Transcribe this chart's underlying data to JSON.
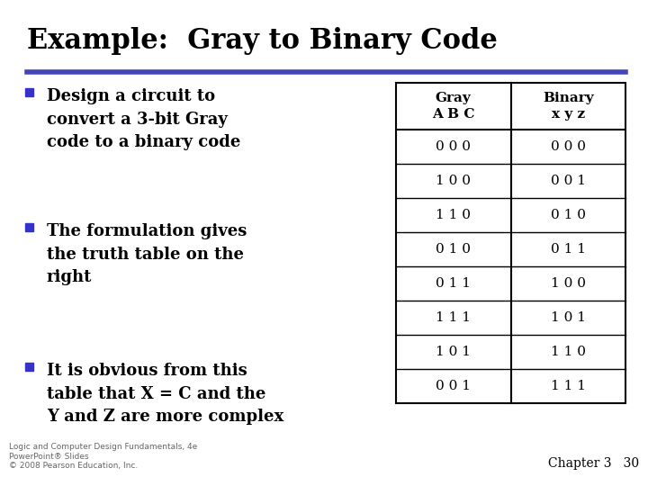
{
  "title": "Example:  Gray to Binary Code",
  "title_color": "#000000",
  "title_fontsize": 22,
  "title_bold": true,
  "separator_color": "#4444bb",
  "bg_color": "#ffffff",
  "bullets": [
    "Design a circuit to\nconvert a 3-bit Gray\ncode to a binary code",
    "The formulation gives\nthe truth table on the\nright",
    "It is obvious from this\ntable that X = C and the\nY and Z are more complex"
  ],
  "bullet_fontsize": 13.0,
  "bullet_color": "#3333cc",
  "bullet_text_color": "#000000",
  "table_header_col1_line1": "Gray",
  "table_header_col1_line2": "A B C",
  "table_header_col2_line1": "Binary",
  "table_header_col2_line2": "x y z",
  "table_data": [
    [
      "0 0 0",
      "0 0 0"
    ],
    [
      "1 0 0",
      "0 0 1"
    ],
    [
      "1 1 0",
      "0 1 0"
    ],
    [
      "0 1 0",
      "0 1 1"
    ],
    [
      "0 1 1",
      "1 0 0"
    ],
    [
      "1 1 1",
      "1 0 1"
    ],
    [
      "1 0 1",
      "1 1 0"
    ],
    [
      "0 0 1",
      "1 1 1"
    ]
  ],
  "table_fontsize": 11,
  "footer_line1": "Logic and Computer Design Fundamentals, 4e",
  "footer_line2": "PowerPoint® Slides",
  "footer_line3": "© 2008 Pearson Education, Inc.",
  "footer_fontsize": 6.5,
  "chapter_text": "Chapter 3   30",
  "chapter_fontsize": 10
}
